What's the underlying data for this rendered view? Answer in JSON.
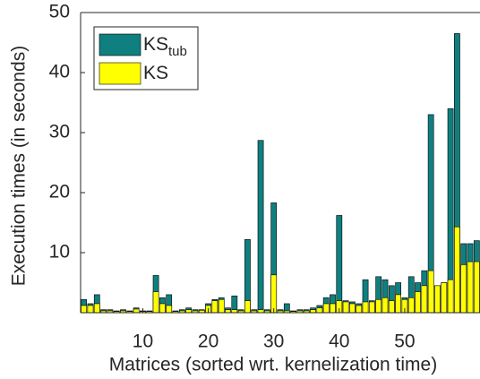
{
  "chart_data": {
    "type": "overlaid-bar",
    "xlabel": "Matrices (sorted wrt. kernelization time)",
    "ylabel": "Execution times (in seconds)",
    "categories": [
      1,
      2,
      3,
      4,
      5,
      6,
      7,
      8,
      9,
      10,
      11,
      12,
      13,
      14,
      15,
      16,
      17,
      18,
      19,
      20,
      21,
      22,
      23,
      24,
      25,
      26,
      27,
      28,
      29,
      30,
      31,
      32,
      33,
      34,
      35,
      36,
      37,
      38,
      39,
      40,
      41,
      42,
      43,
      44,
      45,
      46,
      47,
      48,
      49,
      50,
      51,
      52,
      53,
      54,
      55,
      56,
      57,
      58,
      59,
      60,
      61
    ],
    "xlim": [
      0.5,
      61.5
    ],
    "xticks": [
      10,
      20,
      30,
      40,
      50
    ],
    "ylim": [
      0,
      50
    ],
    "yticks": [
      10,
      20,
      30,
      40,
      50
    ],
    "legend": "upper-left",
    "series": [
      {
        "name": "KS",
        "name_subscript": "tub",
        "color": "#0f7f7f",
        "values": [
          2.2,
          1.5,
          3,
          0.5,
          0.5,
          0.3,
          0.5,
          0.3,
          0.8,
          0.3,
          0.3,
          6.2,
          2.5,
          3,
          0.3,
          0.5,
          0.8,
          0.5,
          0.5,
          1.5,
          2.2,
          2.5,
          0.8,
          2.8,
          0.5,
          12.2,
          0.5,
          28.7,
          0.5,
          18.3,
          0.5,
          1.5,
          0.3,
          0.5,
          0.5,
          0.8,
          1.2,
          2.5,
          3,
          16.2,
          2,
          1.8,
          1.5,
          5.5,
          2,
          6,
          5.5,
          4.5,
          5,
          2.5,
          6,
          5,
          7,
          33,
          4.5,
          5,
          34,
          46.5,
          11.5,
          11.5,
          12
        ]
      },
      {
        "name": "KS",
        "color": "#ffff00",
        "values": [
          1.2,
          1.2,
          1.5,
          0.3,
          0.3,
          0.2,
          0.3,
          0.2,
          0.6,
          0.2,
          0.2,
          3.5,
          1.5,
          1.2,
          0.2,
          0.3,
          0.5,
          0.3,
          0.4,
          1.2,
          2,
          2.2,
          0.5,
          0.5,
          0.3,
          2,
          0.3,
          0.5,
          0.3,
          6.3,
          0.3,
          0.3,
          0.2,
          0.3,
          0.3,
          0.5,
          0.8,
          1.5,
          1.5,
          2,
          1.8,
          1.5,
          1.2,
          1.8,
          1.8,
          2.2,
          2.5,
          2,
          3,
          2.2,
          2.5,
          3.5,
          4.5,
          7,
          4.5,
          5,
          5.5,
          14.3,
          8,
          8.5,
          8.5
        ]
      }
    ]
  }
}
